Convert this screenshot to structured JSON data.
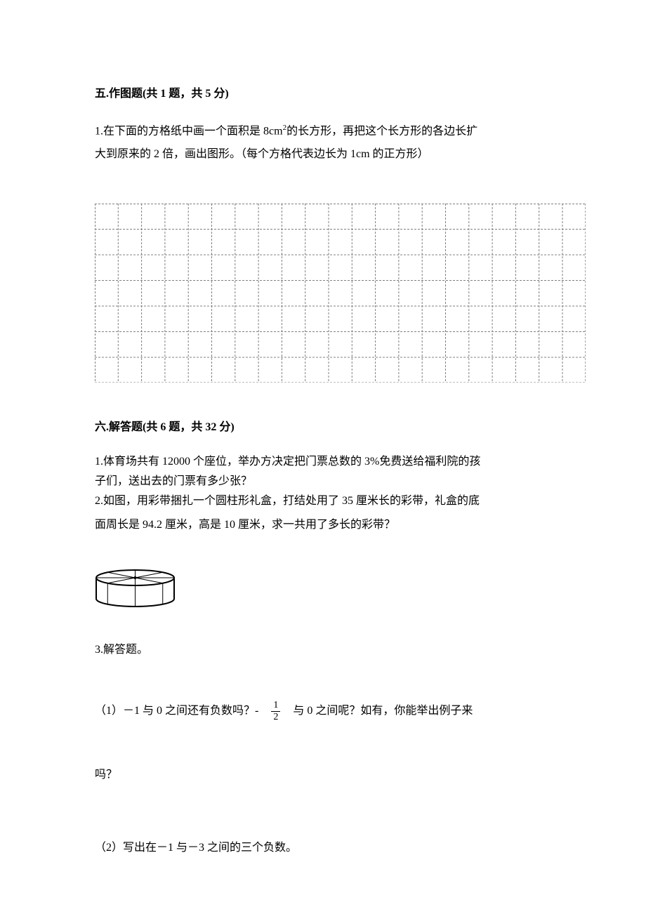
{
  "section5": {
    "title": "五.作图题(共 1 题，共 5 分)",
    "q1": {
      "text_line1_a": "1.在下面的方格纸中画一个面积是 8cm",
      "sup": "2",
      "text_line1_b": "的长方形，再把这个长方形的各边长扩",
      "text_line2": "大到原来的 2 倍，画出图形。（每个方格代表边长为 1cm 的正方形）"
    },
    "grid": {
      "rows": 7,
      "cols": 21,
      "cell_w": 33.3,
      "cell_h": 36.5,
      "border_color": "#808080",
      "dash_array": "3,2",
      "stroke_width": 1
    }
  },
  "section6": {
    "title": "六.解答题(共 6 题，共 32 分)",
    "q1": {
      "line1": "1.体育场共有 12000 个座位，举办方决定把门票总数的 3%免费送给福利院的孩",
      "line2": "子们，送出去的门票有多少张？"
    },
    "q2": {
      "line1": "2.如图，用彩带捆扎一个圆柱形礼盒，打结处用了 35 厘米长的彩带，礼盒的底",
      "line2": "面周长是 94.2 厘米，高是 10 厘米，求一共用了多长的彩带？"
    },
    "cylinder": {
      "width": 115,
      "height": 56,
      "stroke_color": "#000000",
      "stroke_width": 2
    },
    "q3": {
      "title": "3.解答题。",
      "sub1_a": "（1）－1 与 0 之间还有负数吗？-",
      "frac_num": "1",
      "frac_den": "2",
      "sub1_b": "与 0 之间呢？如有，你能举出例子来",
      "sub1_cont": "吗？",
      "sub2": "（2）写出在－1 与－3 之间的三个负数。"
    }
  }
}
